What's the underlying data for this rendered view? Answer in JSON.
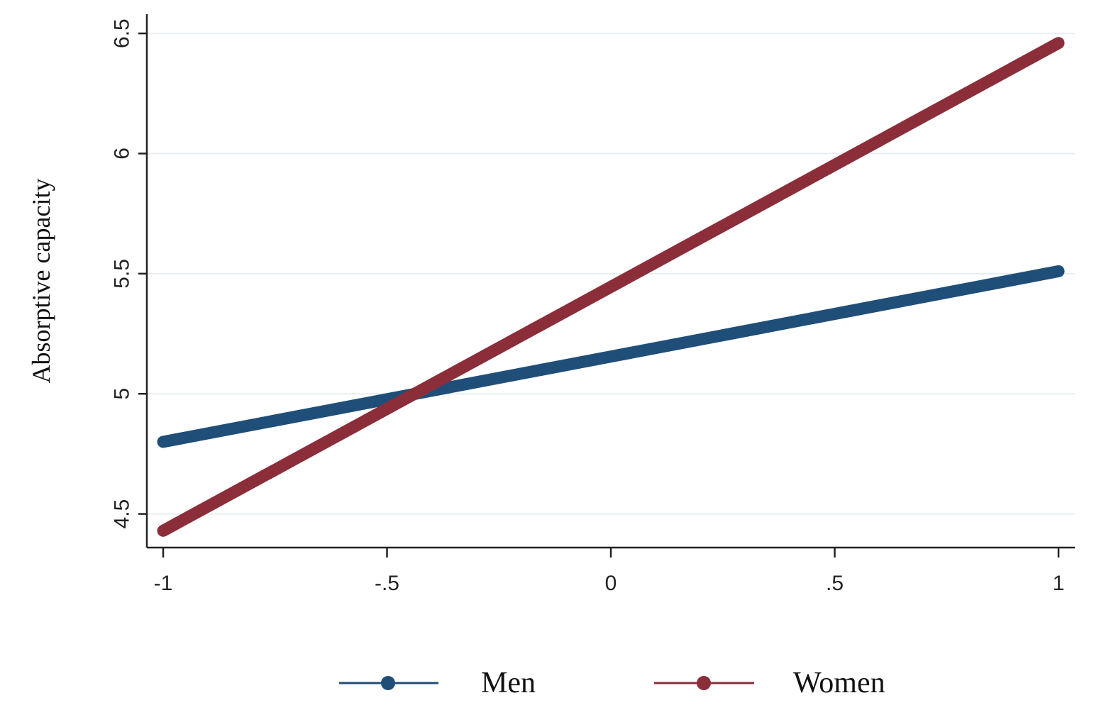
{
  "chart_data": {
    "type": "line",
    "ylabel": "Absorptive capacity",
    "xlabel": "",
    "xlim": [
      -1,
      1
    ],
    "ylim": [
      4.36,
      6.58
    ],
    "x_ticks": [
      -1,
      -0.5,
      0,
      0.5,
      1
    ],
    "x_tick_labels": [
      "-1",
      "-.5",
      "0",
      ".5",
      "1"
    ],
    "y_ticks": [
      4.5,
      5,
      5.5,
      6,
      6.5
    ],
    "y_tick_labels": [
      "4.5",
      "5",
      "5.5",
      "6",
      "6.5"
    ],
    "grid": true,
    "legend_position": "bottom",
    "series": [
      {
        "name": "Men",
        "color": "#1f4e79",
        "x": [
          -1,
          1
        ],
        "y": [
          4.8,
          5.51
        ]
      },
      {
        "name": "Women",
        "color": "#8b2e3a",
        "x": [
          -1,
          1
        ],
        "y": [
          4.43,
          6.46
        ]
      }
    ]
  }
}
